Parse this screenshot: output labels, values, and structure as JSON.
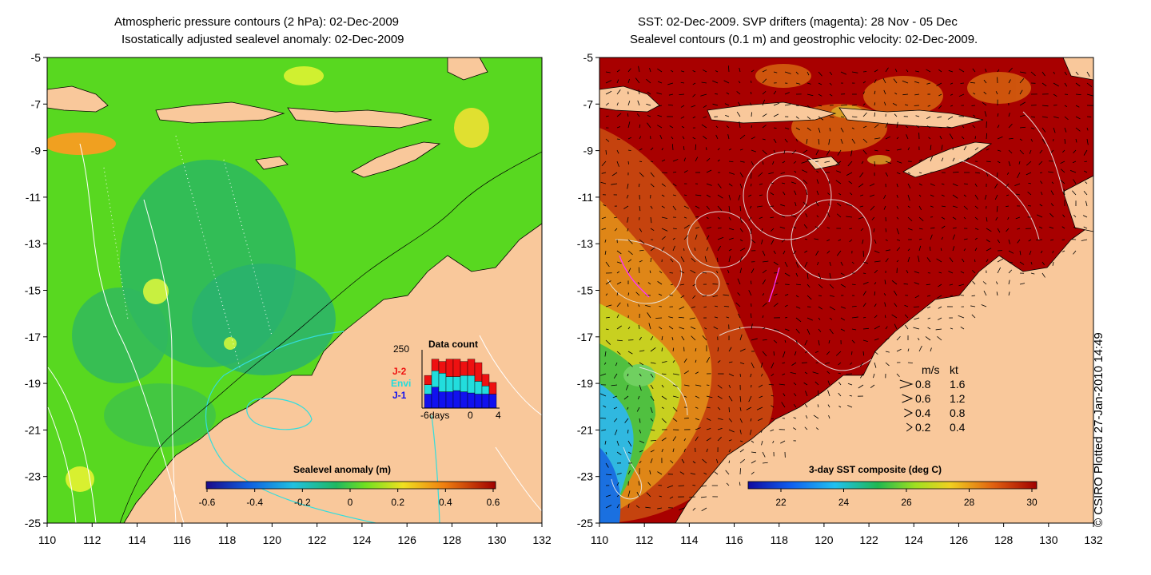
{
  "left_panel": {
    "title_line1": "Atmospheric pressure contours (2 hPa): 02-Dec-2009",
    "title_line2": "Isostatically adjusted sealevel anomaly: 02-Dec-2009",
    "colorbar_label": "Sealevel anomaly (m)",
    "colorbar_ticks": [
      "-0.6",
      "-0.4",
      "-0.2",
      "0",
      "0.2",
      "0.4",
      "0.6"
    ],
    "inset": {
      "title": "Data count",
      "y_max_label": "250",
      "legend": [
        {
          "label": "J-2",
          "color": "#ee1111"
        },
        {
          "label": "Envi",
          "color": "#22dddd"
        },
        {
          "label": "J-1",
          "color": "#1111ee"
        }
      ],
      "x_labels": [
        "-6",
        "days",
        "0",
        "4"
      ]
    }
  },
  "right_panel": {
    "title_line1": "SST: 02-Dec-2009. SVP drifters (magenta): 28 Nov - 05 Dec",
    "title_line2": "Sealevel contours (0.1 m) and geostrophic velocity: 02-Dec-2009.",
    "colorbar_label": "3-day SST composite (deg C)",
    "colorbar_ticks": [
      "22",
      "24",
      "26",
      "28",
      "30"
    ],
    "velocity_legend": {
      "header_ms": "m/s",
      "header_kt": "kt",
      "rows": [
        {
          "ms": "0.8",
          "kt": "1.6"
        },
        {
          "ms": "0.6",
          "kt": "1.2"
        },
        {
          "ms": "0.4",
          "kt": "0.8"
        },
        {
          "ms": "0.2",
          "kt": "0.4"
        }
      ]
    }
  },
  "x_axis_ticks": [
    "110",
    "112",
    "114",
    "116",
    "118",
    "120",
    "122",
    "124",
    "126",
    "128",
    "130",
    "132"
  ],
  "y_axis_ticks": [
    "-5",
    "-7",
    "-9",
    "-11",
    "-13",
    "-15",
    "-17",
    "-19",
    "-21",
    "-23",
    "-25"
  ],
  "credit": "© CSIRO Plotted 27-Jan-2010 14:49",
  "colors": {
    "land": "#f9c89b",
    "sla_field": "#58d820",
    "sst_warm": "#a80000",
    "sst_cool": "#22a0ee",
    "contour": "#ffffff",
    "cyan_contour": "#33dddd",
    "drifter": "#ff33ff"
  },
  "chart_data": [
    {
      "type": "heatmap",
      "title": "Atmospheric pressure contours (2 hPa): 02-Dec-2009 / Isostatically adjusted sealevel anomaly: 02-Dec-2009",
      "xlim": [
        110,
        132
      ],
      "ylim": [
        -25,
        -5
      ],
      "colorbar": {
        "label": "Sealevel anomaly (m)",
        "range": [
          -0.6,
          0.6
        ]
      },
      "inset_histogram": {
        "title": "Data count",
        "ylim": [
          0,
          250
        ],
        "x_days": [
          -6,
          -5,
          -4,
          -3,
          -2,
          -1,
          0,
          1,
          2,
          3
        ],
        "series": [
          {
            "name": "J-1",
            "values": [
              60,
              90,
              70,
              70,
              75,
              70,
              65,
              60,
              60,
              60
            ]
          },
          {
            "name": "Envi",
            "values": [
              40,
              70,
              80,
              65,
              60,
              70,
              75,
              55,
              35,
              0
            ]
          },
          {
            "name": "J-2",
            "values": [
              40,
              50,
              50,
              75,
              75,
              60,
              70,
              80,
              50,
              50
            ]
          }
        ]
      }
    },
    {
      "type": "heatmap",
      "title": "SST: 02-Dec-2009. SVP drifters (magenta): 28 Nov - 05 Dec / Sealevel contours (0.1 m) and geostrophic velocity: 02-Dec-2009.",
      "xlim": [
        110,
        132
      ],
      "ylim": [
        -25,
        -5
      ],
      "colorbar": {
        "label": "3-day SST composite (deg C)",
        "range": [
          21,
          30
        ]
      },
      "velocity_scale_ms": [
        0.8,
        0.6,
        0.4,
        0.2
      ],
      "velocity_scale_kt": [
        1.6,
        1.2,
        0.8,
        0.4
      ]
    }
  ]
}
